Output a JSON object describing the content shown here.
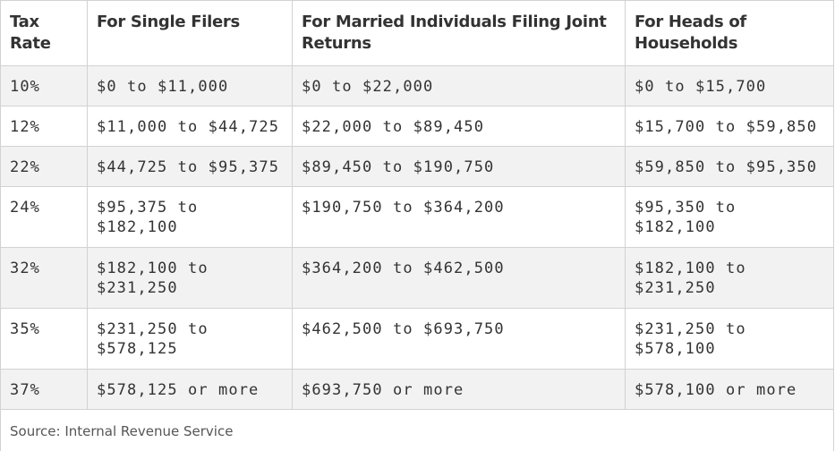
{
  "table": {
    "columns": [
      "Tax Rate",
      "For Single Filers",
      "For Married Individuals Filing Joint Returns",
      "For Heads of Households"
    ],
    "rows": [
      [
        "10%",
        "$0 to $11,000",
        "$0 to $22,000",
        "$0 to $15,700"
      ],
      [
        "12%",
        "$11,000 to $44,725",
        "$22,000 to $89,450",
        "$15,700 to $59,850"
      ],
      [
        "22%",
        "$44,725 to $95,375",
        "$89,450 to $190,750",
        "$59,850 to $95,350"
      ],
      [
        "24%",
        "$95,375 to $182,100",
        "$190,750 to $364,200",
        "$95,350 to $182,100"
      ],
      [
        "32%",
        "$182,100 to $231,250",
        "$364,200 to $462,500",
        "$182,100 to $231,250"
      ],
      [
        "35%",
        "$231,250 to $578,125",
        "$462,500 to $693,750",
        "$231,250 to $578,100"
      ],
      [
        "37%",
        "$578,125 or more",
        "$693,750 or more",
        "$578,100 or more"
      ]
    ],
    "source": "Source: Internal Revenue Service"
  }
}
